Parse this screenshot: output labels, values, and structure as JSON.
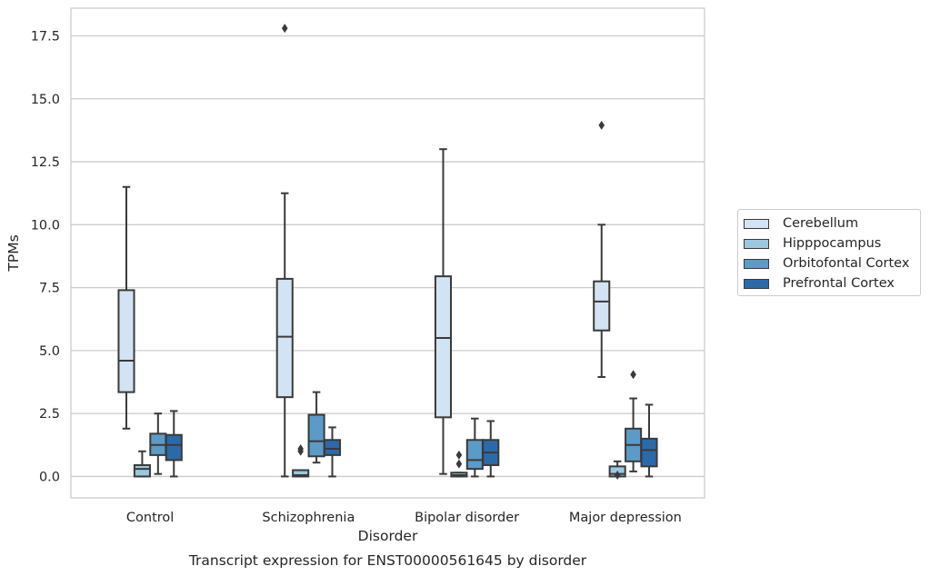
{
  "chart_data": {
    "type": "boxplot",
    "title": "Transcript expression for ENST00000561645 by disorder",
    "xlabel": "Disorder",
    "ylabel": "TPMs",
    "ylim": [
      -0.85,
      18.6
    ],
    "yticks": [
      "0.0",
      "2.5",
      "5.0",
      "7.5",
      "10.0",
      "12.5",
      "15.0",
      "17.5"
    ],
    "grid": true,
    "legend_position": "right",
    "categories": [
      "Control",
      "Schizophrenia",
      "Bipolar disorder",
      "Major depression"
    ],
    "series": [
      {
        "name": "Cerebellum",
        "color": "#d2e3f3",
        "boxes": [
          {
            "whislo": 1.9,
            "q1": 3.35,
            "med": 4.6,
            "q3": 7.4,
            "whishi": 11.5,
            "fliers": []
          },
          {
            "whislo": 0.0,
            "q1": 3.15,
            "med": 5.55,
            "q3": 7.85,
            "whishi": 11.25,
            "fliers": [
              17.8
            ]
          },
          {
            "whislo": 0.1,
            "q1": 2.35,
            "med": 5.5,
            "q3": 7.95,
            "whishi": 13.0,
            "fliers": []
          },
          {
            "whislo": 3.95,
            "q1": 5.8,
            "med": 6.95,
            "q3": 7.75,
            "whishi": 10.0,
            "fliers": [
              13.95
            ]
          }
        ]
      },
      {
        "name": "Hipppocampus",
        "color": "#9ac8e0",
        "boxes": [
          {
            "whislo": 0.0,
            "q1": 0.0,
            "med": 0.3,
            "q3": 0.45,
            "whishi": 1.0,
            "fliers": []
          },
          {
            "whislo": 0.0,
            "q1": 0.0,
            "med": 0.05,
            "q3": 0.25,
            "whishi": 0.25,
            "fliers": [
              1.0,
              1.1
            ]
          },
          {
            "whislo": 0.0,
            "q1": 0.0,
            "med": 0.05,
            "q3": 0.15,
            "whishi": 0.15,
            "fliers": [
              0.5,
              0.85
            ]
          },
          {
            "whislo": 0.0,
            "q1": 0.0,
            "med": 0.1,
            "q3": 0.4,
            "whishi": 0.6,
            "fliers": [
              0.05
            ]
          }
        ]
      },
      {
        "name": "Orbitofontal Cortex",
        "color": "#5b9bc8",
        "boxes": [
          {
            "whislo": 0.1,
            "q1": 0.85,
            "med": 1.25,
            "q3": 1.7,
            "whishi": 2.5,
            "fliers": []
          },
          {
            "whislo": 0.55,
            "q1": 0.8,
            "med": 1.4,
            "q3": 2.45,
            "whishi": 3.35,
            "fliers": []
          },
          {
            "whislo": 0.0,
            "q1": 0.3,
            "med": 0.65,
            "q3": 1.45,
            "whishi": 2.3,
            "fliers": []
          },
          {
            "whislo": 0.2,
            "q1": 0.6,
            "med": 1.25,
            "q3": 1.9,
            "whishi": 3.1,
            "fliers": [
              4.05
            ]
          }
        ]
      },
      {
        "name": "Prefrontal Cortex",
        "color": "#2b6aa9",
        "boxes": [
          {
            "whislo": 0.0,
            "q1": 0.65,
            "med": 1.25,
            "q3": 1.65,
            "whishi": 2.6,
            "fliers": []
          },
          {
            "whislo": 0.0,
            "q1": 0.85,
            "med": 1.1,
            "q3": 1.45,
            "whishi": 1.95,
            "fliers": []
          },
          {
            "whislo": 0.0,
            "q1": 0.45,
            "med": 0.95,
            "q3": 1.45,
            "whishi": 2.2,
            "fliers": []
          },
          {
            "whislo": 0.0,
            "q1": 0.4,
            "med": 1.05,
            "q3": 1.5,
            "whishi": 2.85,
            "fliers": []
          }
        ]
      }
    ]
  }
}
